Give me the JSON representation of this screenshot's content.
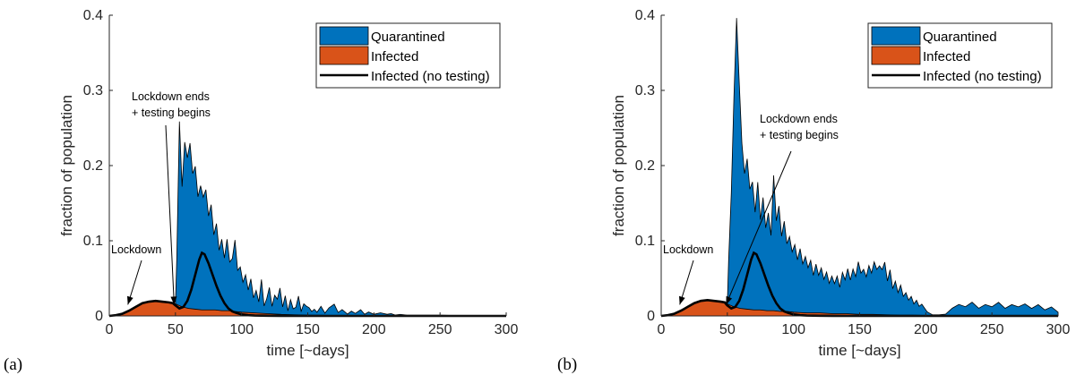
{
  "colors": {
    "quarantined": "#0072BD",
    "infected": "#D95319",
    "no_testing": "#000000"
  },
  "chart_data": [
    {
      "panel": "(a)",
      "type": "area",
      "xlabel": "time [~days]",
      "ylabel": "fraction of population",
      "xlim": [
        0,
        300
      ],
      "ylim": [
        0,
        0.4
      ],
      "xticks": [
        0,
        50,
        100,
        150,
        200,
        250,
        300
      ],
      "yticks": [
        "0",
        "0.1",
        "0.2",
        "0.3",
        "0.4"
      ],
      "grid": false,
      "legend_position": "top-right",
      "legend": [
        "Quarantined",
        "Infected",
        "Infected (no testing)"
      ],
      "annotations": [
        {
          "lines": [
            "Lockdown ends",
            "+ testing begins"
          ],
          "target_x": 49,
          "target_y": 0.015
        },
        {
          "lines": [
            "Lockdown"
          ],
          "target_x": 14,
          "target_y": 0.015
        }
      ],
      "series": [
        {
          "name": "Quarantined",
          "style": "stacked-area",
          "x": [
            0,
            5,
            10,
            15,
            20,
            25,
            30,
            35,
            40,
            45,
            48,
            50,
            51,
            53,
            55,
            57,
            59,
            61,
            63,
            65,
            67,
            69,
            71,
            73,
            75,
            77,
            79,
            81,
            83,
            85,
            87,
            89,
            91,
            93,
            95,
            97,
            99,
            101,
            103,
            105,
            107,
            109,
            111,
            113,
            115,
            117,
            119,
            121,
            123,
            125,
            127,
            129,
            131,
            133,
            135,
            137,
            139,
            141,
            143,
            145,
            147,
            149,
            151,
            153,
            155,
            157,
            160,
            163,
            166,
            170,
            173,
            176,
            180,
            183,
            186,
            190,
            193,
            196,
            200,
            205,
            210,
            213,
            216,
            220,
            225,
            230,
            240,
            250,
            260,
            270,
            280,
            290,
            300
          ],
          "y": [
            0,
            0,
            0,
            0,
            0,
            0,
            0,
            0,
            0,
            0,
            0,
            0,
            0.06,
            0.245,
            0.16,
            0.22,
            0.2,
            0.22,
            0.18,
            0.19,
            0.15,
            0.165,
            0.15,
            0.16,
            0.125,
            0.14,
            0.1,
            0.115,
            0.08,
            0.095,
            0.07,
            0.095,
            0.065,
            0.07,
            0.095,
            0.055,
            0.06,
            0.04,
            0.05,
            0.03,
            0.045,
            0.02,
            0.03,
            0.015,
            0.045,
            0.01,
            0.02,
            0.035,
            0.01,
            0.025,
            0.02,
            0.035,
            0.01,
            0.025,
            0.005,
            0.02,
            0.008,
            0.01,
            0.025,
            0.005,
            0.015,
            0.012,
            0.01,
            0.005,
            0.008,
            0.004,
            0.012,
            0.003,
            0.01,
            0.015,
            0.004,
            0.008,
            0.002,
            0.006,
            0.003,
            0.008,
            0.002,
            0.005,
            0.002,
            0.004,
            0.002,
            0.003,
            0.001,
            0.002,
            0.001,
            0.001,
            0.001,
            0.001,
            0.0005,
            0,
            0,
            0,
            0
          ]
        },
        {
          "name": "Infected",
          "style": "area",
          "x": [
            0,
            5,
            10,
            15,
            20,
            25,
            30,
            35,
            40,
            45,
            48,
            50,
            55,
            60,
            65,
            70,
            75,
            80,
            85,
            90,
            95,
            100,
            110,
            120,
            130,
            140,
            150,
            160,
            170,
            180,
            190,
            200,
            220,
            240,
            260,
            280,
            300
          ],
          "y": [
            0,
            0.001,
            0.003,
            0.007,
            0.012,
            0.017,
            0.019,
            0.02,
            0.019,
            0.018,
            0.017,
            0.016,
            0.012,
            0.01,
            0.009,
            0.008,
            0.008,
            0.008,
            0.007,
            0.007,
            0.006,
            0.005,
            0.004,
            0.003,
            0.002,
            0.0015,
            0.001,
            0.0008,
            0.0006,
            0.0004,
            0.0003,
            0.0002,
            0.0001,
            0,
            0,
            0,
            0
          ]
        },
        {
          "name": "Infected (no testing)",
          "style": "line",
          "x": [
            0,
            5,
            10,
            15,
            20,
            25,
            30,
            35,
            40,
            45,
            48,
            50,
            53,
            56,
            59,
            62,
            65,
            68,
            70,
            72,
            75,
            78,
            81,
            84,
            87,
            90,
            93,
            96,
            100,
            105,
            110,
            120,
            130,
            140,
            150,
            300
          ],
          "y": [
            0,
            0.001,
            0.003,
            0.007,
            0.012,
            0.017,
            0.019,
            0.02,
            0.019,
            0.018,
            0.017,
            0.014,
            0.01,
            0.012,
            0.02,
            0.035,
            0.055,
            0.075,
            0.084,
            0.082,
            0.07,
            0.055,
            0.04,
            0.027,
            0.017,
            0.01,
            0.006,
            0.004,
            0.002,
            0.001,
            0.0005,
            0.0002,
            0.0001,
            0,
            0,
            0
          ]
        }
      ]
    },
    {
      "panel": "(b)",
      "type": "area",
      "xlabel": "time [~days]",
      "ylabel": "fraction of population",
      "xlim": [
        0,
        300
      ],
      "ylim": [
        0,
        0.4
      ],
      "xticks": [
        0,
        50,
        100,
        150,
        200,
        250,
        300
      ],
      "yticks": [
        "0",
        "0.1",
        "0.2",
        "0.3",
        "0.4"
      ],
      "grid": false,
      "legend_position": "top-right",
      "legend": [
        "Quarantined",
        "Infected",
        "Infected (no testing)"
      ],
      "annotations": [
        {
          "lines": [
            "Lockdown ends",
            "+ testing begins"
          ],
          "target_x": 49,
          "target_y": 0.015
        },
        {
          "lines": [
            "Lockdown"
          ],
          "target_x": 14,
          "target_y": 0.015
        }
      ],
      "series": [
        {
          "name": "Quarantined",
          "style": "stacked-area",
          "x": [
            0,
            5,
            10,
            15,
            20,
            25,
            30,
            35,
            40,
            45,
            48,
            50,
            51,
            53,
            55,
            57,
            59,
            61,
            63,
            65,
            67,
            69,
            71,
            73,
            75,
            77,
            79,
            81,
            83,
            85,
            87,
            89,
            91,
            93,
            95,
            97,
            99,
            101,
            103,
            105,
            107,
            109,
            111,
            113,
            115,
            117,
            119,
            121,
            123,
            125,
            127,
            129,
            131,
            133,
            135,
            137,
            139,
            141,
            143,
            145,
            147,
            149,
            151,
            153,
            155,
            157,
            159,
            161,
            163,
            165,
            167,
            169,
            171,
            173,
            175,
            177,
            179,
            181,
            183,
            185,
            187,
            189,
            191,
            193,
            195,
            197,
            199,
            201,
            203,
            205,
            210,
            215,
            220,
            225,
            230,
            235,
            240,
            245,
            250,
            255,
            260,
            265,
            270,
            275,
            280,
            285,
            290,
            295,
            300
          ],
          "y": [
            0,
            0,
            0,
            0,
            0,
            0,
            0,
            0,
            0,
            0,
            0,
            0,
            0.06,
            0.15,
            0.28,
            0.385,
            0.3,
            0.22,
            0.18,
            0.2,
            0.16,
            0.17,
            0.13,
            0.17,
            0.12,
            0.15,
            0.11,
            0.13,
            0.1,
            0.18,
            0.12,
            0.14,
            0.1,
            0.12,
            0.09,
            0.1,
            0.08,
            0.09,
            0.07,
            0.085,
            0.065,
            0.075,
            0.06,
            0.07,
            0.05,
            0.065,
            0.05,
            0.06,
            0.045,
            0.055,
            0.04,
            0.05,
            0.04,
            0.05,
            0.035,
            0.055,
            0.045,
            0.06,
            0.045,
            0.06,
            0.05,
            0.07,
            0.055,
            0.06,
            0.05,
            0.065,
            0.055,
            0.07,
            0.06,
            0.065,
            0.06,
            0.07,
            0.045,
            0.06,
            0.035,
            0.045,
            0.03,
            0.04,
            0.025,
            0.03,
            0.02,
            0.025,
            0.015,
            0.02,
            0.012,
            0.015,
            0.01,
            0.005,
            0.003,
            0.001,
            0.001,
            0.002,
            0.01,
            0.015,
            0.012,
            0.018,
            0.01,
            0.015,
            0.012,
            0.018,
            0.01,
            0.015,
            0.012,
            0.016,
            0.01,
            0.015,
            0.008,
            0.012,
            0.005
          ]
        },
        {
          "name": "Infected",
          "style": "area",
          "x": [
            0,
            5,
            10,
            15,
            20,
            25,
            30,
            35,
            40,
            45,
            48,
            50,
            55,
            60,
            65,
            70,
            75,
            80,
            85,
            90,
            95,
            100,
            110,
            120,
            130,
            140,
            150,
            160,
            170,
            180,
            190,
            200,
            220,
            240,
            260,
            280,
            300
          ],
          "y": [
            0,
            0.001,
            0.003,
            0.007,
            0.012,
            0.017,
            0.02,
            0.021,
            0.02,
            0.019,
            0.018,
            0.016,
            0.012,
            0.01,
            0.009,
            0.008,
            0.008,
            0.007,
            0.007,
            0.006,
            0.006,
            0.005,
            0.004,
            0.004,
            0.003,
            0.003,
            0.002,
            0.002,
            0.0015,
            0.001,
            0.001,
            0.0005,
            0.0003,
            0.0002,
            0.0001,
            0,
            0
          ]
        },
        {
          "name": "Infected (no testing)",
          "style": "line",
          "x": [
            0,
            5,
            10,
            15,
            20,
            25,
            30,
            35,
            40,
            45,
            48,
            50,
            53,
            56,
            59,
            62,
            65,
            68,
            70,
            72,
            75,
            78,
            81,
            84,
            87,
            90,
            93,
            96,
            100,
            105,
            110,
            120,
            130,
            140,
            150,
            300
          ],
          "y": [
            0,
            0.001,
            0.003,
            0.007,
            0.012,
            0.017,
            0.02,
            0.021,
            0.02,
            0.019,
            0.018,
            0.014,
            0.01,
            0.012,
            0.02,
            0.035,
            0.055,
            0.075,
            0.084,
            0.082,
            0.07,
            0.055,
            0.04,
            0.027,
            0.017,
            0.01,
            0.006,
            0.004,
            0.002,
            0.001,
            0.0005,
            0.0002,
            0.0001,
            0,
            0,
            0
          ]
        }
      ]
    }
  ]
}
